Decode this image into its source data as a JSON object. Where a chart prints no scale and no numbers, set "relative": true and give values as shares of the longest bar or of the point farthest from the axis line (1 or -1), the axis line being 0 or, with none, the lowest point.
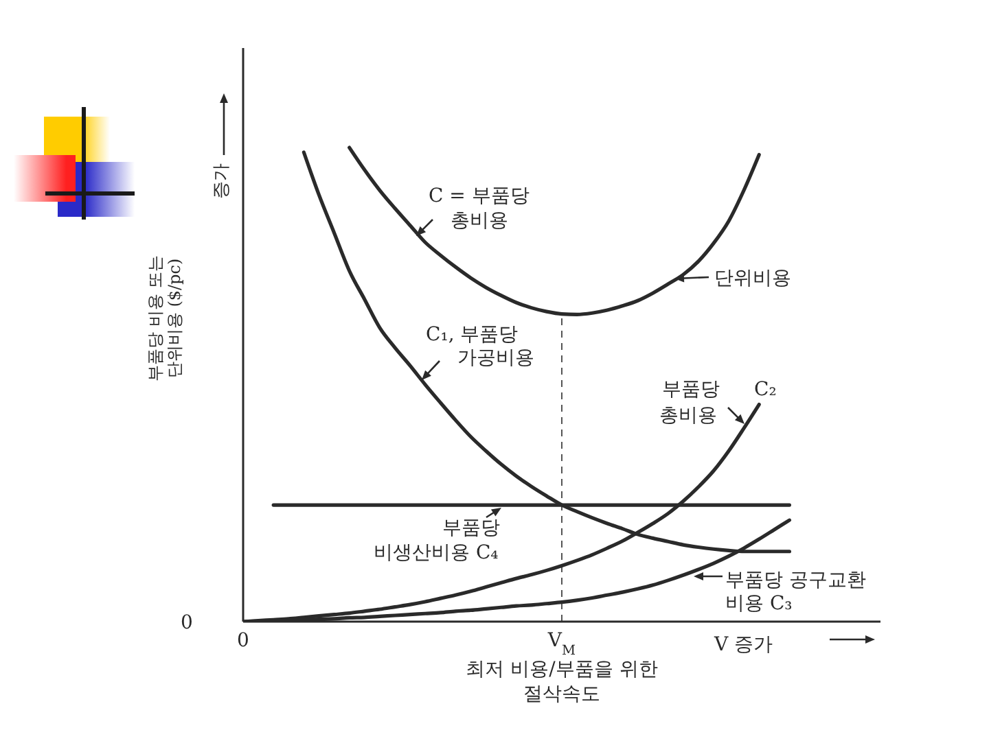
{
  "chart_data": {
    "type": "line",
    "relative": true,
    "xlabel": "V 증가",
    "ylabel": "부품당 비용 또는 단위비용 ($/pc)",
    "categories": [
      "0",
      null,
      null,
      null,
      null,
      null,
      null,
      null,
      null,
      null,
      null,
      null,
      null,
      null,
      null,
      null,
      null,
      null,
      null,
      null,
      null,
      "V$_{M}$",
      null,
      null,
      null,
      null,
      null,
      null,
      null,
      null,
      null,
      null,
      null,
      null,
      null,
      null,
      null,
      null,
      null,
      null,
      null,
      null,
      null
    ],
    "series": [
      {
        "name": "C = 부품당 총비용",
        "color": "#2a2a2a",
        "values": [
          null,
          null,
          null,
          null,
          null,
          null,
          null,
          1,
          0.953,
          0.91,
          0.872,
          0.836,
          0.8,
          0.773,
          0.748,
          0.725,
          0.705,
          0.688,
          0.673,
          0.662,
          0.654,
          0.649,
          0.648,
          0.651,
          0.657,
          0.666,
          0.677,
          0.693,
          0.712,
          0.732,
          0.76,
          0.798,
          0.845,
          0.91,
          0.985,
          null,
          null,
          null,
          null,
          null,
          null,
          null,
          null
        ]
      },
      {
        "name": "C₁, 부품당 가공비용",
        "color": "#2a2a2a",
        "values": [
          null,
          null,
          null,
          null,
          0.99,
          0.9,
          0.82,
          0.74,
          0.68,
          0.62,
          0.578,
          0.54,
          0.5,
          0.462,
          0.425,
          0.39,
          0.36,
          0.332,
          0.307,
          0.285,
          0.265,
          0.246,
          0.232,
          0.219,
          0.207,
          0.196,
          0.184,
          0.176,
          0.169,
          0.162,
          0.157,
          0.153,
          0.15,
          0.148,
          0.148,
          0.148,
          0.148,
          null,
          null,
          null,
          null,
          null,
          null
        ]
      },
      {
        "name": "부품당 총비용 C₂",
        "color": "#2a2a2a",
        "values": [
          0,
          0.002,
          0.004,
          0.006,
          0.009,
          0.012,
          0.015,
          0.018,
          0.022,
          0.026,
          0.031,
          0.036,
          0.042,
          0.049,
          0.056,
          0.064,
          0.073,
          0.082,
          0.091,
          0.099,
          0.108,
          0.118,
          0.129,
          0.141,
          0.155,
          0.17,
          0.188,
          0.207,
          0.228,
          0.254,
          0.284,
          0.318,
          0.36,
          0.408,
          0.458,
          null,
          null,
          null,
          null,
          null,
          null,
          null,
          null
        ]
      },
      {
        "name": "부품당 공구교환 비용 C₃",
        "color": "#2a2a2a",
        "values": [
          0,
          0.001,
          0.002,
          0.003,
          0.004,
          0.005,
          0.006,
          0.008,
          0.009,
          0.011,
          0.013,
          0.015,
          0.017,
          0.019,
          0.022,
          0.024,
          0.027,
          0.03,
          0.033,
          0.035,
          0.038,
          0.041,
          0.045,
          0.05,
          0.056,
          0.062,
          0.069,
          0.077,
          0.087,
          0.098,
          0.11,
          0.123,
          0.138,
          0.155,
          0.174,
          0.194,
          0.214,
          null,
          null,
          null,
          null,
          null,
          null
        ]
      },
      {
        "name": "부품당 비생산비용 C₄",
        "color": "#2a2a2a",
        "values": [
          null,
          null,
          0.246,
          0.246,
          0.246,
          0.246,
          0.246,
          0.246,
          0.246,
          0.246,
          0.246,
          0.246,
          0.246,
          0.246,
          0.246,
          0.246,
          0.246,
          0.246,
          0.246,
          0.246,
          0.246,
          0.246,
          0.246,
          0.246,
          0.246,
          0.246,
          0.246,
          0.246,
          0.246,
          0.246,
          0.246,
          0.246,
          0.246,
          0.246,
          0.246,
          0.246,
          0.246,
          null,
          null,
          null,
          null,
          null,
          null
        ]
      }
    ],
    "ref_lines": [
      {
        "axis": "x",
        "value": "V$_{M}$",
        "line_style": "dashed",
        "color": "#555555"
      }
    ],
    "annotations": [
      "0",
      "증가",
      "단위비용",
      "최저 비용/부품을 위한 절삭속도"
    ]
  }
}
